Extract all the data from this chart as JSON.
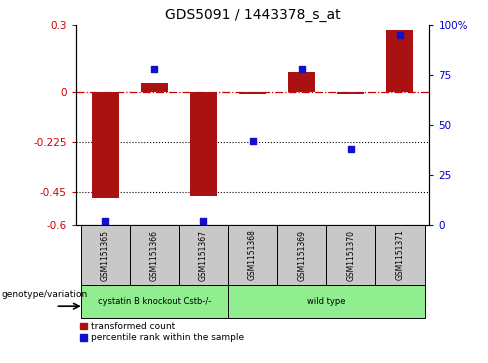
{
  "title": "GDS5091 / 1443378_s_at",
  "samples": [
    "GSM1151365",
    "GSM1151366",
    "GSM1151367",
    "GSM1151368",
    "GSM1151369",
    "GSM1151370",
    "GSM1151371"
  ],
  "red_values": [
    -0.48,
    0.04,
    -0.47,
    -0.01,
    0.09,
    -0.01,
    0.28
  ],
  "blue_values": [
    2,
    78,
    2,
    42,
    78,
    38,
    95
  ],
  "ylim_left": [
    -0.6,
    0.3
  ],
  "ylim_right": [
    0,
    100
  ],
  "yticks_left": [
    -0.6,
    -0.45,
    -0.225,
    0,
    0.3
  ],
  "ytick_labels_left": [
    "-0.6",
    "-0.45",
    "-0.225",
    "0",
    "0.3"
  ],
  "yticks_right": [
    0,
    25,
    50,
    75,
    100
  ],
  "ytick_labels_right": [
    "0",
    "25",
    "50",
    "75",
    "100%"
  ],
  "hlines": [
    -0.225,
    -0.45
  ],
  "group_ranges": [
    {
      "start": 0,
      "end": 2,
      "label": "cystatin B knockout Cstb-/-",
      "color": "#90EE90"
    },
    {
      "start": 3,
      "end": 6,
      "label": "wild type",
      "color": "#90EE90"
    }
  ],
  "genotype_label": "genotype/variation",
  "legend_red": "transformed count",
  "legend_blue": "percentile rank within the sample",
  "bar_width": 0.55,
  "red_color": "#AA1111",
  "blue_color": "#1111CC",
  "left_tick_color": "#CC0000",
  "right_tick_color": "#0000CC",
  "sample_box_color": "#C8C8C8",
  "zero_line_color": "#CC0000"
}
